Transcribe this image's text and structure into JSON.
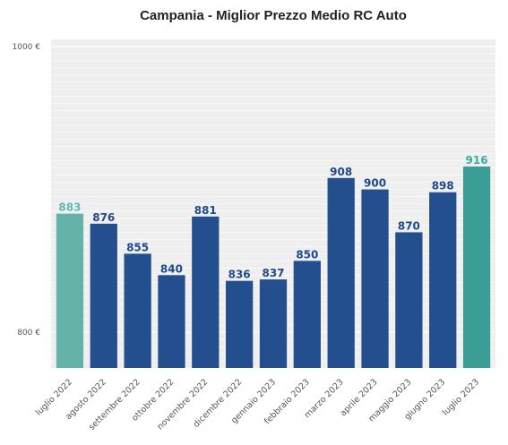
{
  "chart_data": {
    "type": "bar",
    "title": "Campania - Miglior Prezzo Medio RC Auto",
    "xlabel": "",
    "ylabel": "",
    "ylim": [
      775,
      1005
    ],
    "yticks": [
      800,
      1000
    ],
    "ytick_labels": [
      "800 €",
      "1000 €"
    ],
    "grid": true,
    "categories": [
      "luglio 2022",
      "agosto 2022",
      "settembre 2022",
      "ottobre 2022",
      "novembre 2022",
      "dicembre 2022",
      "gennaio 2023",
      "febbraio 2023",
      "marzo 2023",
      "aprile 2023",
      "maggio 2023",
      "giugno 2023",
      "luglio 2023"
    ],
    "values": [
      883,
      876,
      855,
      840,
      881,
      836,
      837,
      850,
      908,
      900,
      870,
      898,
      916
    ],
    "bar_colors": [
      "#64b3ab",
      "#234f8f",
      "#234f8f",
      "#234f8f",
      "#234f8f",
      "#234f8f",
      "#234f8f",
      "#234f8f",
      "#234f8f",
      "#234f8f",
      "#234f8f",
      "#234f8f",
      "#3a9e96"
    ],
    "label_colors": [
      "#5bbbb3",
      "#1f4a8a",
      "#1f4a8a",
      "#1f4a8a",
      "#1f4a8a",
      "#1f4a8a",
      "#1f4a8a",
      "#1f4a8a",
      "#1f4a8a",
      "#1f4a8a",
      "#1f4a8a",
      "#1f4a8a",
      "#3aaaa2"
    ],
    "plot_background": "#efefef",
    "grid_color": "#ffffff"
  }
}
